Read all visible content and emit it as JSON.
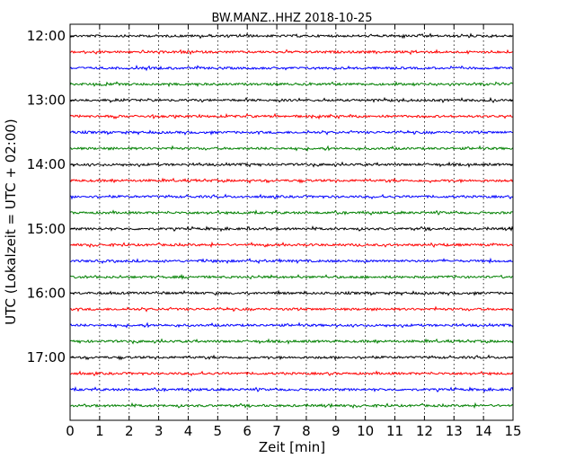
{
  "chart_data": {
    "type": "line",
    "title": "BW.MANZ..HHZ 2018-10-25",
    "xlabel": "Zeit  [min]",
    "ylabel": "UTC (Lokalzeit = UTC + 02:00)",
    "xlim": [
      0,
      15
    ],
    "x_ticks": [
      "0",
      "1",
      "2",
      "3",
      "4",
      "5",
      "6",
      "7",
      "8",
      "9",
      "10",
      "11",
      "12",
      "13",
      "14",
      "15"
    ],
    "y_ticks": [
      "12:00",
      "13:00",
      "14:00",
      "15:00",
      "16:00",
      "17:00"
    ],
    "grid": "vertical dotted at each minute",
    "series_colors": [
      "#000000",
      "#ff0000",
      "#0000ff",
      "#008000"
    ],
    "traces": [
      {
        "start": "12:00",
        "color": "#000000"
      },
      {
        "start": "12:15",
        "color": "#ff0000"
      },
      {
        "start": "12:30",
        "color": "#0000ff"
      },
      {
        "start": "12:45",
        "color": "#008000"
      },
      {
        "start": "13:00",
        "color": "#000000"
      },
      {
        "start": "13:15",
        "color": "#ff0000"
      },
      {
        "start": "13:30",
        "color": "#0000ff"
      },
      {
        "start": "13:45",
        "color": "#008000"
      },
      {
        "start": "14:00",
        "color": "#000000"
      },
      {
        "start": "14:15",
        "color": "#ff0000"
      },
      {
        "start": "14:30",
        "color": "#0000ff"
      },
      {
        "start": "14:45",
        "color": "#008000"
      },
      {
        "start": "15:00",
        "color": "#000000"
      },
      {
        "start": "15:15",
        "color": "#ff0000"
      },
      {
        "start": "15:30",
        "color": "#0000ff"
      },
      {
        "start": "15:45",
        "color": "#008000"
      },
      {
        "start": "16:00",
        "color": "#000000"
      },
      {
        "start": "16:15",
        "color": "#ff0000"
      },
      {
        "start": "16:30",
        "color": "#0000ff"
      },
      {
        "start": "16:45",
        "color": "#008000"
      },
      {
        "start": "17:00",
        "color": "#000000"
      },
      {
        "start": "17:15",
        "color": "#ff0000"
      },
      {
        "start": "17:30",
        "color": "#0000ff"
      },
      {
        "start": "17:45",
        "color": "#008000"
      }
    ]
  }
}
